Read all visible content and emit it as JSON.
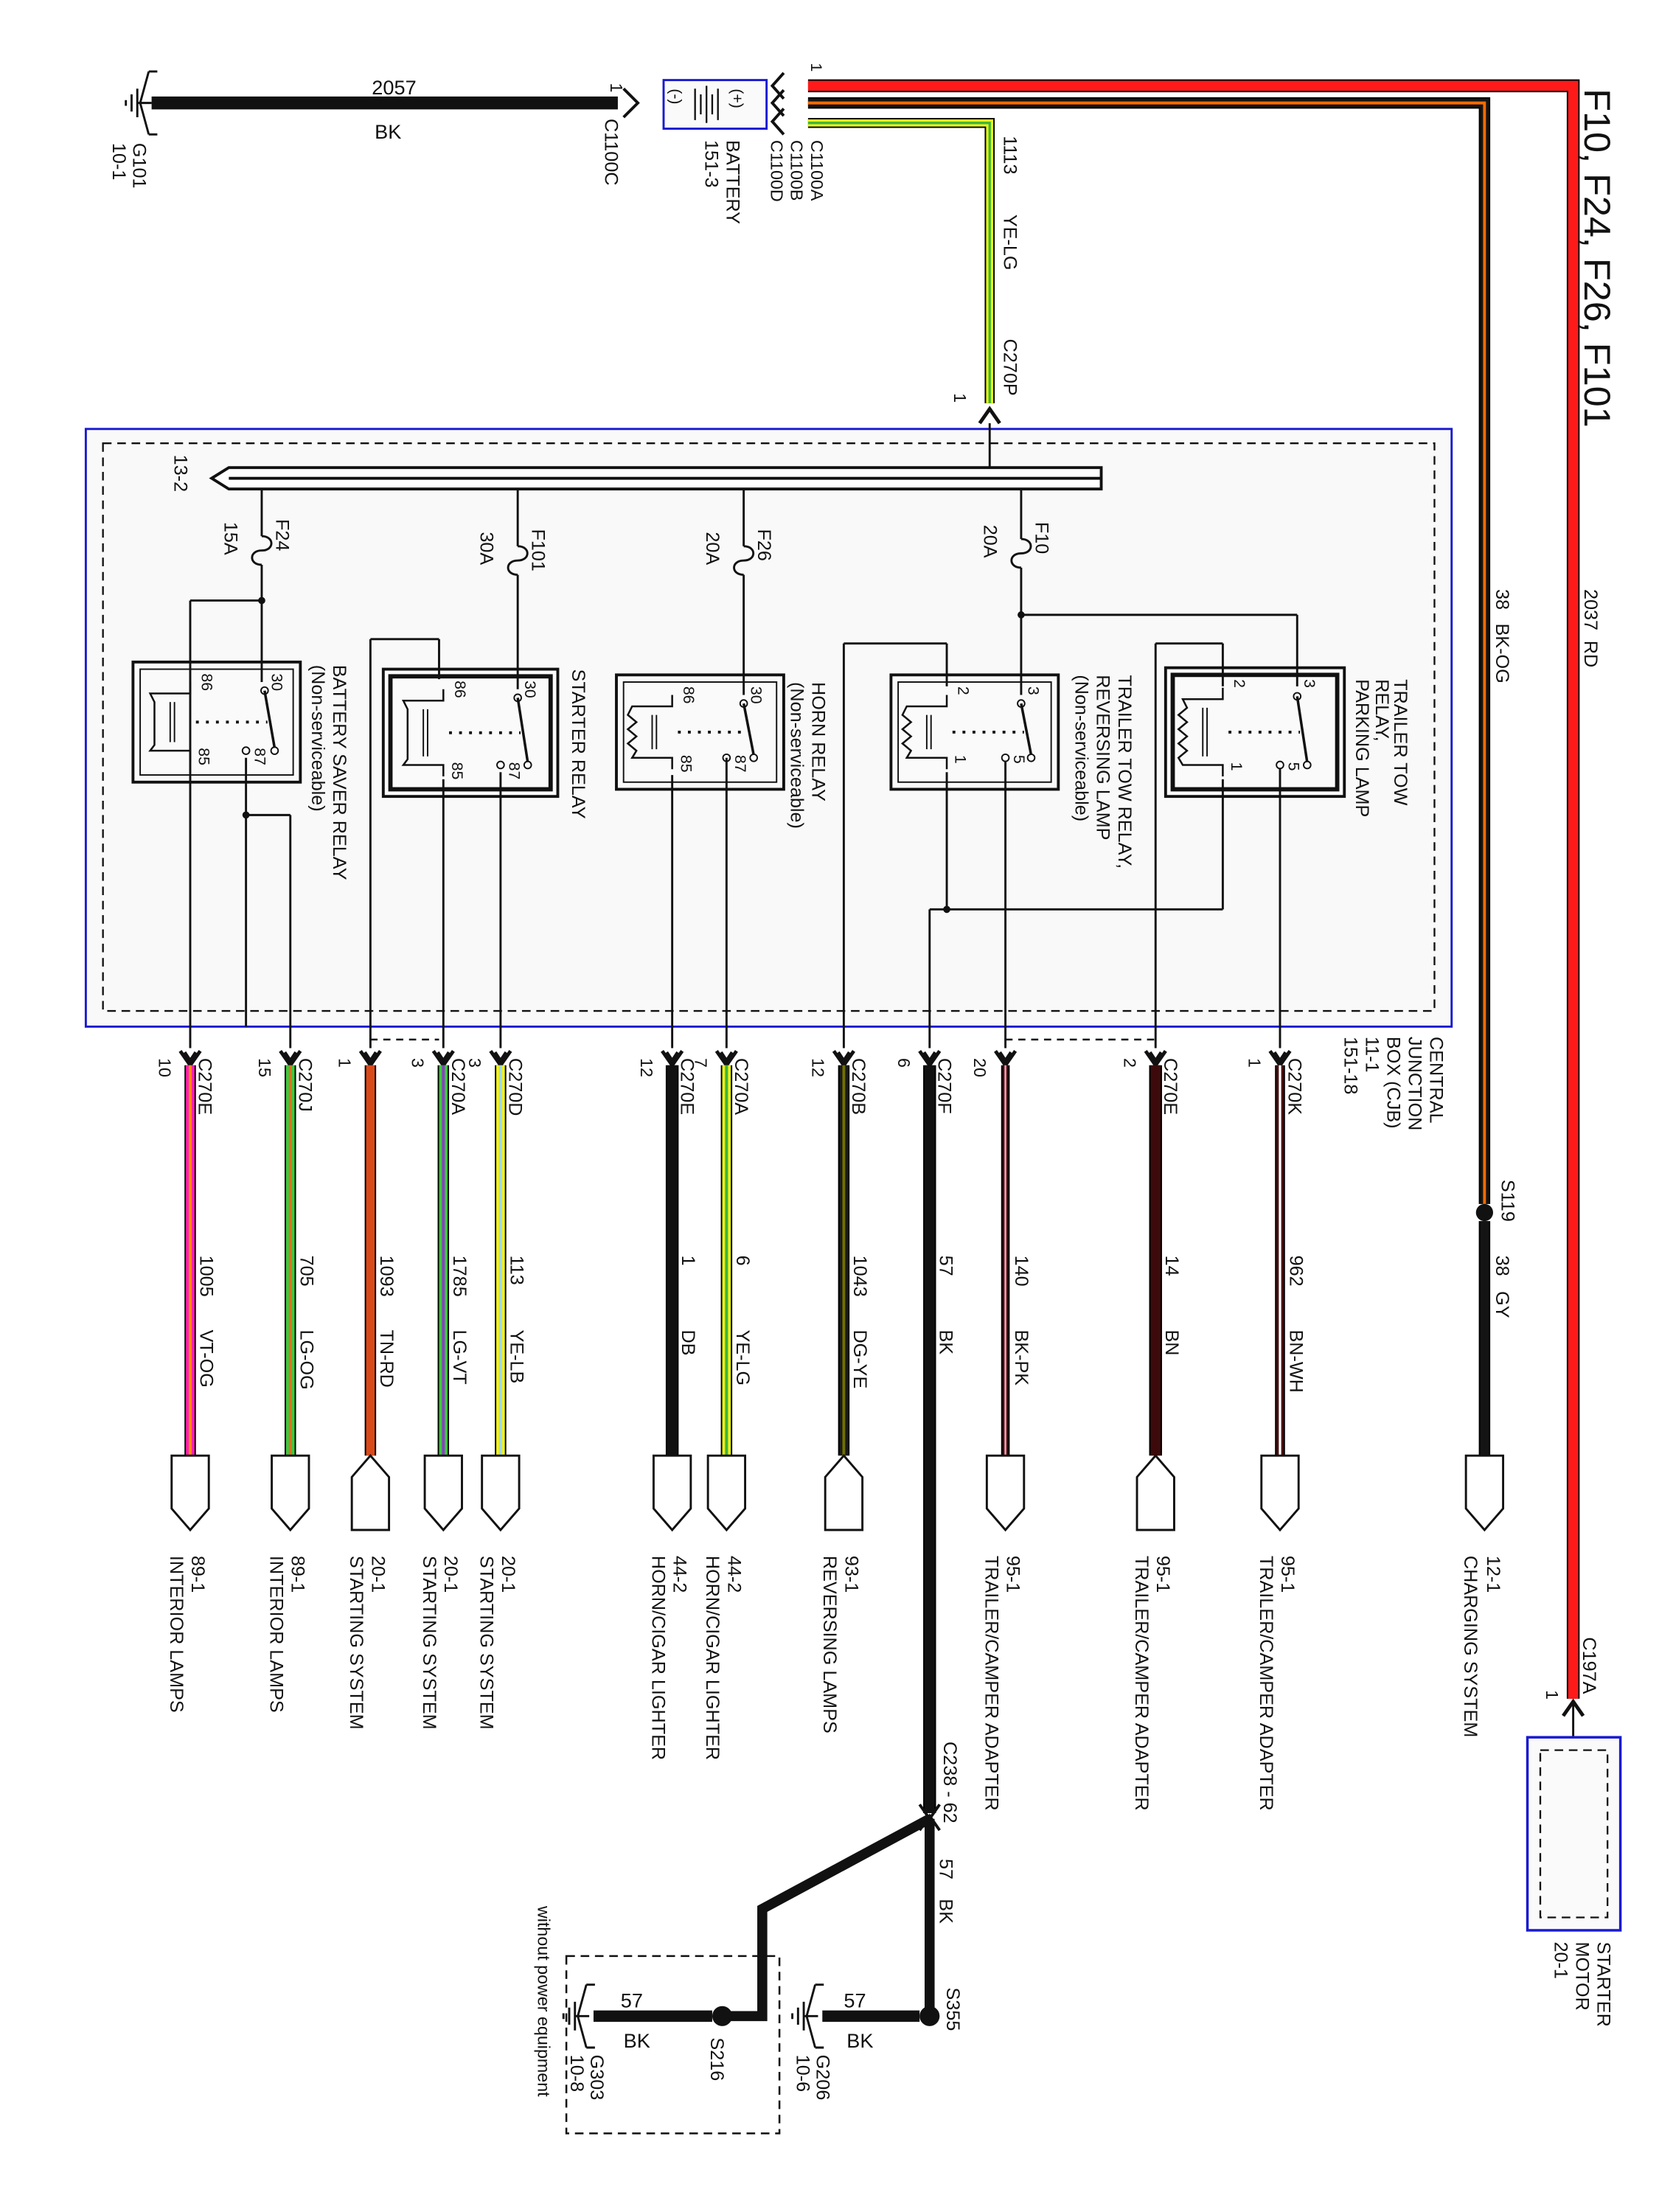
{
  "title": "F10, F24, F26, F101",
  "battery": {
    "label": "BATTERY",
    "ref": "151-3",
    "neg": "(-)",
    "pos": "(+)",
    "connectors": [
      "C1100A",
      "C1100B",
      "C1100D"
    ],
    "neg_connector": "C1100C",
    "pin": "1"
  },
  "ground_g101": {
    "name": "G101",
    "ref": "10-1",
    "circuit": "2057",
    "color": "BK"
  },
  "feed_wires": [
    {
      "circuit": "2037",
      "color": "RD"
    },
    {
      "circuit": "38",
      "color": "BK-OG"
    },
    {
      "circuit": "1113",
      "color": "YE-LG",
      "connector": "C270P",
      "pin": "1"
    }
  ],
  "splice_s119": {
    "name": "S119",
    "circuit": "38",
    "color": "GY",
    "dest_ref": "12-1",
    "dest": "CHARGING SYSTEM"
  },
  "cjb": {
    "label_lines": [
      "CENTRAL",
      "JUNCTION",
      "BOX (CJB)",
      "11-1",
      "151-18"
    ],
    "bus_ref": "13-2"
  },
  "fuses": [
    {
      "name": "F24",
      "rating": "15A"
    },
    {
      "name": "F101",
      "rating": "30A"
    },
    {
      "name": "F26",
      "rating": "20A"
    },
    {
      "name": "F10",
      "rating": "20A"
    }
  ],
  "relays": [
    {
      "lines": [
        "BATTERY SAVER RELAY",
        "(Non-serviceable)"
      ],
      "pins": [
        "86",
        "30",
        "85",
        "87"
      ]
    },
    {
      "lines": [
        "STARTER RELAY"
      ],
      "pins": [
        "86",
        "30",
        "85",
        "87"
      ]
    },
    {
      "lines": [
        "HORN RELAY",
        "(Non-serviceable)"
      ],
      "pins": [
        "86",
        "30",
        "85",
        "87"
      ]
    },
    {
      "lines": [
        "TRAILER TOW RELAY,",
        "REVERSING LAMP",
        "(Non-serviceable)"
      ],
      "pins": [
        "2",
        "3",
        "1",
        "5"
      ]
    },
    {
      "lines": [
        "TRAILER TOW",
        "RELAY,",
        "PARKING LAMP"
      ],
      "pins": [
        "2",
        "3",
        "1",
        "5"
      ]
    }
  ],
  "wires": [
    {
      "connector": "C270E",
      "pin": "10",
      "circuit": "1005",
      "color": "VT-OG",
      "dest_ref": "89-1",
      "dest": "INTERIOR LAMPS"
    },
    {
      "connector": "C270J",
      "pin": "15",
      "circuit": "705",
      "color": "LG-OG",
      "dest_ref": "89-1",
      "dest": "INTERIOR LAMPS"
    },
    {
      "connector": "",
      "pin": "1",
      "circuit": "1093",
      "color": "TN-RD",
      "dest_ref": "20-1",
      "dest": "STARTING SYSTEM"
    },
    {
      "connector": "C270A",
      "pin": "3",
      "circuit": "1785",
      "color": "LG-VT",
      "dest_ref": "20-1",
      "dest": "STARTING SYSTEM"
    },
    {
      "connector": "C270D",
      "pin": "3",
      "circuit": "113",
      "color": "YE-LB",
      "dest_ref": "20-1",
      "dest": "STARTING SYSTEM"
    },
    {
      "connector": "C270E",
      "pin": "12",
      "circuit": "1",
      "color": "DB",
      "dest_ref": "44-2",
      "dest": "HORN/CIGAR LIGHTER"
    },
    {
      "connector": "C270A",
      "pin": "7",
      "circuit": "6",
      "color": "YE-LG",
      "dest_ref": "44-2",
      "dest": "HORN/CIGAR LIGHTER"
    },
    {
      "connector": "C270B",
      "pin": "12",
      "circuit": "1043",
      "color": "DG-YE",
      "dest_ref": "93-1",
      "dest": "REVERSING LAMPS"
    },
    {
      "connector": "C270F",
      "pin": "6",
      "circuit": "57",
      "color": "BK",
      "dest_ref": "",
      "dest": ""
    },
    {
      "connector": "",
      "pin": "20",
      "circuit": "140",
      "color": "BK-PK",
      "dest_ref": "95-1",
      "dest": "TRAILER/CAMPER ADAPTER"
    },
    {
      "connector": "C270E",
      "pin": "2",
      "circuit": "14",
      "color": "BN",
      "dest_ref": "95-1",
      "dest": "TRAILER/CAMPER ADAPTER"
    },
    {
      "connector": "C270K",
      "pin": "1",
      "circuit": "962",
      "color": "BN-WH",
      "dest_ref": "95-1",
      "dest": "TRAILER/CAMPER ADAPTER"
    }
  ],
  "starter_motor": {
    "lines": [
      "STARTER",
      "MOTOR",
      "20-1"
    ],
    "connector": "C197A",
    "pin": "1"
  },
  "ground_section": {
    "inline_connector": "C238 - 62",
    "circuit": "57",
    "color": "BK",
    "splice_a": "S355",
    "splice_b": "S216",
    "ground_a": {
      "name": "G206",
      "ref": "10-6",
      "circuit": "57",
      "color": "BK"
    },
    "ground_b": {
      "name": "G303",
      "ref": "10-8",
      "circuit": "57",
      "color": "BK"
    },
    "option_note": "without power equipment"
  },
  "wire_colors": {
    "RD": [
      "#ff1a1a",
      null
    ],
    "BK-OG": [
      "#141414",
      "#ff6a00"
    ],
    "YE-LG": [
      "#e6f01e",
      "#3cb43c"
    ],
    "GY": [
      "#141414",
      null
    ],
    "BK": [
      "#111111",
      null
    ],
    "VT-OG": [
      "#ff1fb4",
      "#ff8c00"
    ],
    "LG-OG": [
      "#3cc83c",
      "#e07020"
    ],
    "TN-RD": [
      "#d94a1a",
      null
    ],
    "LG-VT": [
      "#3cc83c",
      "#8a40c0"
    ],
    "YE-LB": [
      "#f0f020",
      "#9ad8ff"
    ],
    "DB": [
      "#111111",
      null
    ],
    "DG-YE": [
      "#1a1a1a",
      "#707000"
    ],
    "BK-PK": [
      "#3a1010",
      "#ff9ab0"
    ],
    "BN": [
      "#3c0a0a",
      null
    ],
    "BN-WH": [
      "#4a1010",
      "#ffffff"
    ]
  },
  "accent_colors": {
    "component_outline": "#1a1ad0",
    "box_fill": "#f9f9f9"
  }
}
